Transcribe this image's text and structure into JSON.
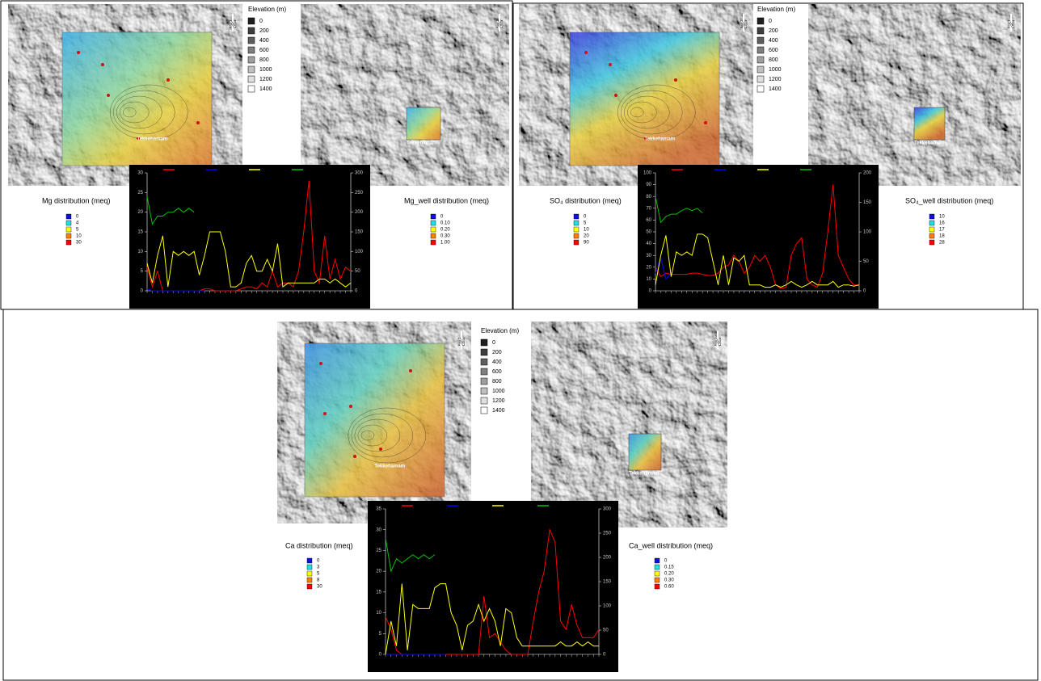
{
  "panels": [
    {
      "left_map": {
        "place": "Tekkehamam",
        "north": "N"
      },
      "right_map": {
        "place": "Tekkehamam",
        "north": "N"
      },
      "elevation": {
        "title": "Elevation (m)",
        "levels": [
          "0",
          "200",
          "400",
          "600",
          "800",
          "1000",
          "1200",
          "1400"
        ]
      },
      "left_legend": {
        "title": "Mg distribution (meq)",
        "items": [
          "0",
          "4",
          "5",
          "10",
          "30"
        ]
      },
      "right_legend": {
        "title": "Mg_well distribution (meq)",
        "items": [
          "0",
          "0.10",
          "0.20",
          "0.30",
          "1.00"
        ]
      }
    },
    {
      "left_map": {
        "place": "Tekkehamam",
        "north": "N"
      },
      "right_map": {
        "place": "Tekkehamam",
        "north": "N"
      },
      "elevation": {
        "title": "Elevation (m)",
        "levels": [
          "0",
          "200",
          "400",
          "600",
          "800",
          "1000",
          "1200",
          "1400"
        ]
      },
      "left_legend": {
        "title": "SO₄ distribution (meq)",
        "items": [
          "0",
          "5",
          "10",
          "20",
          "90"
        ]
      },
      "right_legend": {
        "title": "SO₄_well distribution (meq)",
        "items": [
          "10",
          "16",
          "17",
          "18",
          "28"
        ]
      }
    },
    {
      "left_map": {
        "place": "Tekkehamam",
        "north": "N"
      },
      "right_map": {
        "place": "Tekkehamam",
        "north": "N"
      },
      "elevation": {
        "title": "Elevation (m)",
        "levels": [
          "0",
          "200",
          "400",
          "600",
          "800",
          "1000",
          "1200",
          "1400"
        ]
      },
      "left_legend": {
        "title": "Ca distribution (meq)",
        "items": [
          "0",
          "3",
          "5",
          "8",
          "30"
        ]
      },
      "right_legend": {
        "title": "Ca_well distribution (meq)",
        "items": [
          "0",
          "0.15",
          "0.20",
          "0.30",
          "0.60"
        ]
      }
    }
  ],
  "legend_colors": [
    "#1010e0",
    "#20e0e0",
    "#ffff00",
    "#ff8000",
    "#ff0000"
  ],
  "chart_data": [
    {
      "type": "line",
      "categories": [
        null,
        null,
        null,
        null,
        null,
        null,
        null,
        null,
        null,
        null,
        null,
        null,
        null,
        null,
        null,
        null,
        null,
        null,
        null,
        null,
        null,
        null,
        null,
        null,
        null,
        null,
        null,
        null,
        null,
        null,
        null,
        null,
        null,
        null,
        null,
        null,
        null,
        null,
        null,
        null
      ],
      "series": [
        {
          "color": "#ff0000",
          "values": [
            6,
            1,
            5,
            0,
            0,
            0,
            0,
            0,
            0,
            0,
            0,
            0.5,
            0.5,
            0,
            0,
            0,
            0,
            0,
            0.5,
            1,
            1,
            0.5,
            2,
            1,
            5,
            1,
            2,
            2,
            1,
            5,
            15,
            28,
            5,
            2,
            14,
            3,
            8,
            3,
            6,
            5
          ]
        },
        {
          "color": "#0000ff",
          "values": [
            0.5,
            0,
            0,
            0,
            0,
            0,
            0,
            0,
            0,
            0,
            0,
            0,
            null,
            null,
            null,
            null,
            null,
            null,
            null,
            null,
            null,
            null,
            null,
            null,
            null,
            null,
            null,
            null,
            null,
            null,
            null,
            null,
            null,
            null,
            null,
            null,
            null,
            null,
            null,
            null
          ]
        },
        {
          "color": "#ffff00",
          "values": [
            7,
            2,
            9,
            14,
            1,
            10,
            9,
            10,
            9,
            10,
            4,
            9,
            15,
            15,
            15,
            10,
            1,
            1,
            2,
            7,
            9,
            5,
            5,
            8,
            5,
            12,
            1,
            2,
            2,
            2,
            2,
            2,
            2,
            3,
            3,
            2,
            3,
            2,
            1,
            2
          ]
        },
        {
          "color": "#00c000",
          "values": [
            24,
            17,
            19,
            19,
            20,
            20,
            21,
            20,
            21,
            20,
            null,
            null,
            null,
            null,
            null,
            null,
            null,
            null,
            null,
            null,
            null,
            null,
            null,
            null,
            null,
            null,
            null,
            null,
            null,
            null,
            null,
            null,
            null,
            null,
            null,
            null,
            null,
            null,
            null,
            null
          ]
        }
      ],
      "ylim": [
        0,
        30
      ],
      "yticks": [
        0,
        5,
        10,
        15,
        20,
        25,
        30
      ],
      "y2lim": [
        0,
        300
      ],
      "y2ticks": [
        0,
        50,
        100,
        150,
        200,
        250,
        300
      ]
    },
    {
      "type": "line",
      "categories": [
        null,
        null,
        null,
        null,
        null,
        null,
        null,
        null,
        null,
        null,
        null,
        null,
        null,
        null,
        null,
        null,
        null,
        null,
        null,
        null,
        null,
        null,
        null,
        null,
        null,
        null,
        null,
        null,
        null,
        null,
        null,
        null,
        null,
        null,
        null,
        null,
        null,
        null,
        null,
        null
      ],
      "series": [
        {
          "color": "#ff0000",
          "values": [
            20,
            12,
            15,
            14,
            14,
            14,
            14,
            15,
            15,
            14,
            13,
            13,
            15,
            20,
            22,
            30,
            25,
            15,
            20,
            30,
            25,
            30,
            20,
            5,
            2,
            3,
            30,
            40,
            45,
            10,
            5,
            3,
            15,
            50,
            90,
            30,
            20,
            10,
            5,
            5
          ]
        },
        {
          "color": "#0000ff",
          "values": [
            15,
            28,
            10,
            15,
            null,
            null,
            null,
            null,
            null,
            null,
            null,
            null,
            null,
            null,
            null,
            null,
            null,
            null,
            null,
            null,
            null,
            null,
            null,
            null,
            null,
            null,
            null,
            null,
            null,
            null,
            null,
            null,
            null,
            null,
            null,
            null,
            null,
            null,
            null,
            null
          ]
        },
        {
          "color": "#ffff00",
          "values": [
            5,
            30,
            47,
            12,
            33,
            30,
            33,
            30,
            48,
            48,
            45,
            25,
            5,
            30,
            5,
            28,
            25,
            30,
            5,
            5,
            5,
            3,
            3,
            5,
            3,
            5,
            8,
            5,
            3,
            5,
            8,
            5,
            5,
            5,
            8,
            3,
            5,
            5,
            4,
            5
          ]
        },
        {
          "color": "#00c000",
          "values": [
            80,
            58,
            63,
            65,
            65,
            68,
            70,
            68,
            70,
            66,
            null,
            null,
            null,
            null,
            null,
            null,
            null,
            null,
            null,
            null,
            null,
            null,
            null,
            null,
            null,
            null,
            null,
            null,
            null,
            null,
            null,
            null,
            null,
            null,
            null,
            null,
            null,
            null,
            null,
            null
          ]
        }
      ],
      "ylim": [
        0,
        100
      ],
      "yticks": [
        0,
        10,
        20,
        30,
        40,
        50,
        60,
        70,
        80,
        90,
        100
      ],
      "y2lim": [
        0,
        200
      ],
      "y2ticks": [
        0,
        50,
        100,
        150,
        200
      ]
    },
    {
      "type": "line",
      "categories": [
        null,
        null,
        null,
        null,
        null,
        null,
        null,
        null,
        null,
        null,
        null,
        null,
        null,
        null,
        null,
        null,
        null,
        null,
        null,
        null,
        null,
        null,
        null,
        null,
        null,
        null,
        null,
        null,
        null,
        null,
        null,
        null,
        null,
        null,
        null,
        null,
        null,
        null,
        null,
        null
      ],
      "series": [
        {
          "color": "#ff0000",
          "values": [
            9,
            6,
            1,
            0,
            0,
            0,
            0,
            0,
            0,
            0,
            0,
            0,
            0,
            0,
            0,
            0,
            0,
            0,
            14,
            4,
            5,
            3,
            1,
            0,
            0,
            0,
            0,
            8,
            15,
            20,
            30,
            27,
            8,
            6,
            12,
            7,
            4,
            4,
            4,
            6
          ]
        },
        {
          "color": "#0000ff",
          "values": [
            0,
            0,
            0,
            0,
            0,
            0,
            0,
            0,
            0,
            0,
            0,
            0,
            null,
            null,
            null,
            null,
            null,
            null,
            null,
            null,
            null,
            null,
            null,
            null,
            null,
            null,
            null,
            null,
            null,
            null,
            null,
            null,
            null,
            null,
            null,
            null,
            null,
            null,
            null,
            null
          ]
        },
        {
          "color": "#ffff00",
          "values": [
            0,
            8,
            2,
            17,
            1,
            12,
            11,
            11,
            11,
            16,
            17,
            17,
            10,
            7,
            1,
            7,
            8,
            12,
            8,
            11,
            8,
            2,
            11,
            10,
            4,
            2,
            2,
            2,
            2,
            2,
            2,
            2,
            3,
            2,
            2,
            3,
            2,
            3,
            2,
            2
          ]
        },
        {
          "color": "#00c000",
          "values": [
            28,
            20,
            23,
            22,
            23,
            24,
            23,
            24,
            23,
            24,
            null,
            null,
            null,
            null,
            null,
            null,
            null,
            null,
            null,
            null,
            null,
            null,
            null,
            null,
            null,
            null,
            null,
            null,
            null,
            null,
            null,
            null,
            null,
            null,
            null,
            null,
            null,
            null,
            null,
            null
          ]
        }
      ],
      "ylim": [
        0,
        35
      ],
      "yticks": [
        0,
        5,
        10,
        15,
        20,
        25,
        30,
        35
      ],
      "y2lim": [
        0,
        300
      ],
      "y2ticks": [
        0,
        50,
        100,
        150,
        200,
        250,
        300
      ]
    }
  ]
}
